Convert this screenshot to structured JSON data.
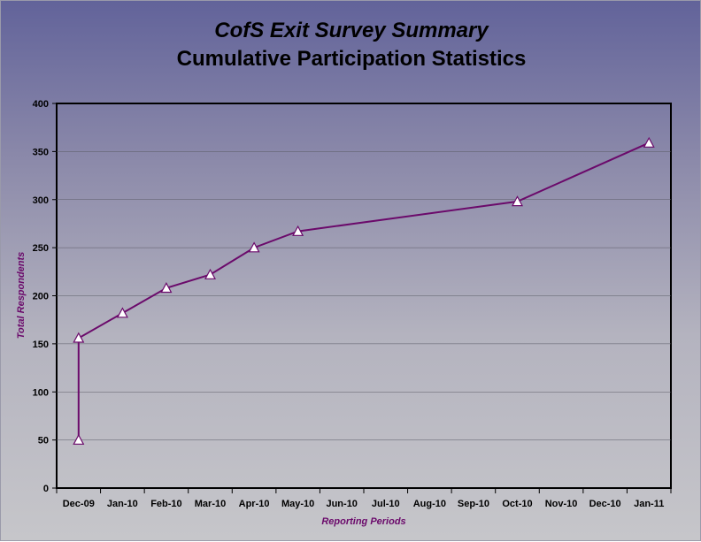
{
  "chart_data": {
    "type": "line",
    "title": "CofS Exit Survey Summary",
    "subtitle": "Cumulative Participation Statistics",
    "xlabel": "Reporting Periods",
    "ylabel": "Total Respondents",
    "ylim": [
      0,
      400
    ],
    "yticks": [
      0,
      50,
      100,
      150,
      200,
      250,
      300,
      350,
      400
    ],
    "categories": [
      "Dec-09",
      "Jan-10",
      "Feb-10",
      "Mar-10",
      "Apr-10",
      "May-10",
      "Jun-10",
      "Jul-10",
      "Aug-10",
      "Sep-10",
      "Oct-10",
      "Nov-10",
      "Dec-10",
      "Jan-11"
    ],
    "grid": true,
    "series": [
      {
        "name": "Total Respondents",
        "color": "#6b0a6b",
        "marker": "triangle",
        "points": [
          {
            "x": 0,
            "y": 50
          },
          {
            "x": 0,
            "y": 156
          },
          {
            "x": 1,
            "y": 182
          },
          {
            "x": 2,
            "y": 208
          },
          {
            "x": 3,
            "y": 222
          },
          {
            "x": 4,
            "y": 250
          },
          {
            "x": 5,
            "y": 267
          },
          {
            "x": 10,
            "y": 298
          },
          {
            "x": 13,
            "y": 359
          }
        ]
      }
    ]
  }
}
